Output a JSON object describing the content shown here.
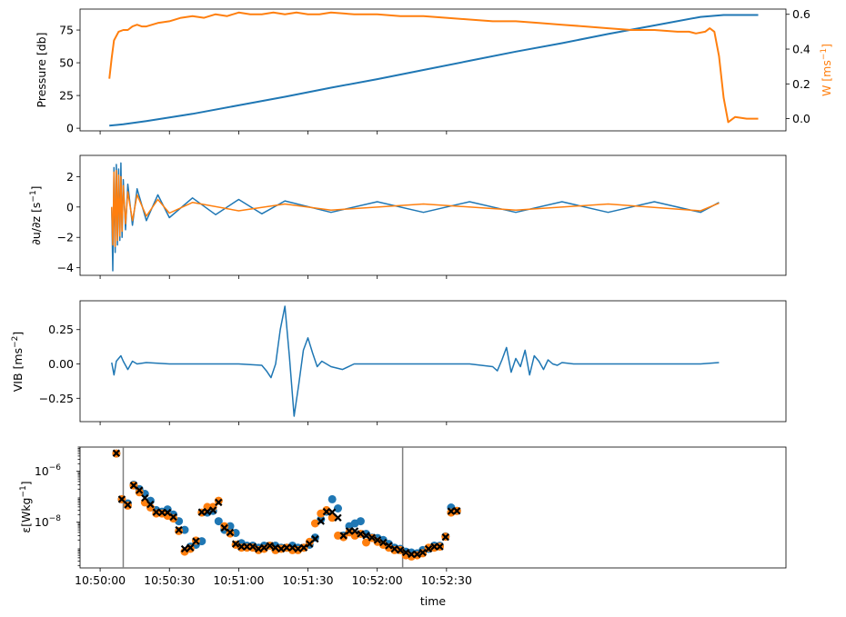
{
  "colors": {
    "blue": "#1f77b4",
    "orange": "#ff7f0e",
    "vline": "#808080",
    "marker_x": "#000000"
  },
  "chart_data": [
    {
      "type": "line",
      "id": "pressure",
      "xlabel": "",
      "ylabel": "Pressure [db]",
      "y2label": "W [ms",
      "y2label_sup": "−1",
      "y2label_end": "]",
      "xlim": [
        -8.7,
        297
      ],
      "ylim": [
        -2,
        91
      ],
      "y2lim": [
        -0.07,
        0.63
      ],
      "yticks": [
        0,
        25,
        50,
        75
      ],
      "y2ticks": [
        0.0,
        0.2,
        0.4,
        0.6
      ],
      "y2ticklabels": [
        "0.0",
        "0.2",
        "0.4",
        "0.6"
      ],
      "series": [
        {
          "axis": "left",
          "color": "#1f77b4",
          "x": [
            4,
            10,
            20,
            40,
            60,
            80,
            100,
            120,
            140,
            160,
            180,
            200,
            220,
            240,
            260,
            270,
            285
          ],
          "values": [
            2,
            3,
            5.5,
            11,
            17.5,
            24,
            31,
            37.5,
            44.5,
            51.5,
            58.5,
            65,
            72,
            78.5,
            85,
            86.5,
            86.5
          ]
        },
        {
          "axis": "right",
          "color": "#ff7f0e",
          "x": [
            4,
            5,
            6,
            8,
            10,
            12,
            14,
            16,
            18,
            20,
            25,
            30,
            35,
            40,
            45,
            50,
            55,
            60,
            65,
            70,
            75,
            80,
            85,
            90,
            95,
            100,
            110,
            120,
            130,
            140,
            150,
            160,
            170,
            180,
            190,
            200,
            210,
            220,
            230,
            240,
            250,
            255,
            258,
            262,
            264,
            266,
            268,
            270,
            272,
            275,
            280,
            285
          ],
          "values": [
            0.23,
            0.35,
            0.45,
            0.5,
            0.51,
            0.51,
            0.53,
            0.54,
            0.53,
            0.53,
            0.55,
            0.56,
            0.58,
            0.59,
            0.58,
            0.6,
            0.59,
            0.61,
            0.6,
            0.6,
            0.61,
            0.6,
            0.61,
            0.6,
            0.6,
            0.61,
            0.6,
            0.6,
            0.59,
            0.59,
            0.58,
            0.57,
            0.56,
            0.56,
            0.55,
            0.54,
            0.53,
            0.52,
            0.51,
            0.51,
            0.5,
            0.5,
            0.49,
            0.5,
            0.52,
            0.5,
            0.36,
            0.12,
            -0.02,
            0.01,
            0.0,
            0.0
          ]
        }
      ]
    },
    {
      "type": "line",
      "id": "shear",
      "xlabel": "",
      "ylabel": "∂u/∂z [s",
      "ylabel_sup": "−1",
      "ylabel_end": "]",
      "xlim": [
        -8.7,
        297
      ],
      "ylim": [
        -4.5,
        3.4
      ],
      "yticks": [
        -4,
        -2,
        0,
        2
      ],
      "yticklabels": [
        "−4",
        "−2",
        "0",
        "2"
      ],
      "series": [
        {
          "color": "#1f77b4",
          "x": [
            5,
            5.5,
            6,
            6.5,
            7,
            7.5,
            8,
            8.5,
            9,
            9.5,
            10,
            11,
            12,
            14,
            16,
            20,
            25,
            30,
            40,
            50,
            60,
            70,
            80,
            100,
            120,
            140,
            160,
            180,
            200,
            220,
            240,
            260,
            268
          ],
          "values": [
            0,
            -4.2,
            2.6,
            -3.0,
            2.8,
            -2.5,
            2.5,
            -2.2,
            2.9,
            -2.0,
            1.8,
            -1.5,
            1.5,
            -1.2,
            1.2,
            -0.9,
            0.8,
            -0.7,
            0.6,
            -0.5,
            0.5,
            -0.45,
            0.4,
            -0.35,
            0.35,
            -0.35,
            0.35,
            -0.35,
            0.35,
            -0.35,
            0.35,
            -0.35,
            0.3
          ]
        },
        {
          "color": "#ff7f0e",
          "x": [
            5,
            5.5,
            6,
            6.5,
            7,
            7.5,
            8,
            8.5,
            9,
            9.5,
            10,
            11,
            12,
            14,
            16,
            20,
            25,
            30,
            40,
            60,
            80,
            100,
            140,
            180,
            220,
            260,
            268
          ],
          "values": [
            0,
            -2.5,
            2.3,
            -2.6,
            2.4,
            -2.2,
            2.1,
            -1.9,
            2.0,
            -1.6,
            1.4,
            -1.1,
            1.0,
            -0.9,
            0.8,
            -0.6,
            0.5,
            -0.4,
            0.3,
            -0.25,
            0.2,
            -0.2,
            0.2,
            -0.2,
            0.2,
            -0.25,
            0.25
          ]
        }
      ]
    },
    {
      "type": "line",
      "id": "vib",
      "xlabel": "",
      "ylabel": "VIB [ms",
      "ylabel_sup": "−2",
      "ylabel_end": "]",
      "xlim": [
        -8.7,
        297
      ],
      "ylim": [
        -0.42,
        0.46
      ],
      "yticks": [
        -0.25,
        0.0,
        0.25
      ],
      "yticklabels": [
        "−0.25",
        "0.00",
        "0.25"
      ],
      "series": [
        {
          "color": "#1f77b4",
          "x": [
            5,
            6,
            7,
            8,
            9,
            10,
            12,
            14,
            16,
            20,
            30,
            40,
            50,
            60,
            70,
            72,
            74,
            76,
            78,
            80,
            82,
            84,
            86,
            88,
            90,
            92,
            94,
            96,
            100,
            105,
            110,
            120,
            140,
            160,
            170,
            172,
            174,
            176,
            178,
            180,
            182,
            184,
            186,
            188,
            190,
            192,
            194,
            196,
            198,
            200,
            205,
            210,
            220,
            240,
            260,
            268
          ],
          "values": [
            0.01,
            -0.08,
            0.02,
            0.04,
            0.06,
            0.02,
            -0.04,
            0.02,
            0.0,
            0.01,
            0.0,
            0.0,
            0.0,
            0.0,
            -0.01,
            -0.05,
            -0.1,
            0.0,
            0.25,
            0.42,
            0.05,
            -0.38,
            -0.15,
            0.1,
            0.19,
            0.08,
            -0.02,
            0.02,
            -0.02,
            -0.04,
            0.0,
            0.0,
            0.0,
            0.0,
            -0.02,
            -0.05,
            0.03,
            0.12,
            -0.06,
            0.04,
            -0.02,
            0.1,
            -0.08,
            0.06,
            0.02,
            -0.04,
            0.03,
            0.0,
            -0.01,
            0.01,
            0.0,
            0.0,
            0.0,
            0.0,
            0.0,
            0.01
          ]
        }
      ]
    },
    {
      "type": "scatter",
      "id": "epsilon",
      "xlabel": "time",
      "ylabel": "ε[Wkg",
      "ylabel_sup": "−1",
      "ylabel_end": "]",
      "scale": "log",
      "xlim": [
        -8.7,
        297
      ],
      "ylim": [
        1.6e-10,
        9e-06
      ],
      "yticks": [
        1e-08,
        1e-06
      ],
      "ytick_base": "10",
      "ytick_exps": [
        "−8",
        "−6"
      ],
      "xticks": [
        0,
        30,
        60,
        90,
        120,
        150
      ],
      "xticklabels": [
        "10:50:00",
        "10:50:30",
        "10:51:00",
        "10:51:30",
        "10:52:00",
        "10:52:30"
      ],
      "vlines": [
        10,
        131
      ],
      "times": [
        7,
        9.4,
        12,
        14.5,
        17,
        19.4,
        21.8,
        24.3,
        26.8,
        29.2,
        31.7,
        34.1,
        36.6,
        39.1,
        41.5,
        44,
        46.4,
        48.9,
        51.3,
        53.8,
        56.3,
        58.7,
        61.2,
        63.6,
        66.1,
        68.6,
        71,
        73.5,
        75.9,
        78.4,
        80.8,
        83.3,
        85.7,
        88.2,
        90.7,
        93.1,
        95.6,
        98,
        100.5,
        103,
        105.4,
        107.9,
        110.3,
        112.8,
        115.2,
        117.7,
        120.1,
        122.6,
        125,
        127.5,
        130,
        132.4,
        134.8,
        137.3,
        139.7,
        142.2,
        144.7,
        147.1,
        149.6,
        152,
        154.5,
        156.9
      ],
      "series": [
        {
          "name": "",
          "color": "#1f77b4",
          "marker": "o",
          "values": [
            5e-06,
            8e-08,
            5.5e-08,
            3e-07,
            2e-07,
            1.3e-07,
            7e-08,
            3e-08,
            2.6e-08,
            3.2e-08,
            2e-08,
            1.1e-08,
            5e-09,
            1.1e-09,
            1.3e-09,
            1.8e-09,
            2.4e-08,
            2.8e-08,
            1.1e-08,
            5e-09,
            7e-09,
            3.8e-09,
            1.5e-09,
            1.2e-09,
            1.2e-09,
            1e-09,
            1.2e-09,
            1.2e-09,
            1.2e-09,
            1e-09,
            1e-09,
            1.2e-09,
            1e-09,
            1e-09,
            1.3e-09,
            2.5e-09,
            1.3e-08,
            2.6e-08,
            8e-08,
            3.5e-08,
            3e-09,
            7e-09,
            9e-09,
            1.1e-08,
            3.5e-09,
            2.5e-09,
            2.4e-09,
            2e-09,
            1.4e-09,
            1e-09,
            9e-10,
            7e-10,
            6.5e-10,
            6e-10,
            8e-10,
            9e-10,
            1.2e-09,
            1.2e-09,
            2.8e-09,
            3.8e-08,
            2.8e-08,
            0
          ],
          "count": 61
        },
        {
          "name": "",
          "color": "#ff7f0e",
          "marker": "o",
          "values": [
            5e-06,
            8e-08,
            4.5e-08,
            2.8e-07,
            1.5e-07,
            6e-08,
            3.8e-08,
            2.2e-08,
            2.2e-08,
            1.8e-08,
            1.4e-08,
            4.5e-09,
            7e-10,
            9e-10,
            1.9e-09,
            2.4e-08,
            4e-08,
            4e-08,
            7e-08,
            7e-09,
            3.6e-09,
            1.3e-09,
            1e-09,
            1e-09,
            1e-09,
            8e-10,
            9e-10,
            1.2e-09,
            8e-10,
            9e-10,
            1e-09,
            8e-10,
            8e-10,
            1e-09,
            1.7e-09,
            9e-09,
            2.2e-08,
            3e-08,
            1.5e-08,
            3e-09,
            2.6e-09,
            4e-09,
            3e-09,
            3.5e-09,
            1.6e-09,
            2.4e-09,
            1.7e-09,
            1.3e-09,
            1e-09,
            8e-10,
            8e-10,
            5e-10,
            4.5e-10,
            5e-10,
            6e-10,
            1e-09,
            1e-09,
            1.1e-09,
            2.7e-09,
            2.4e-08,
            2.8e-08,
            0
          ],
          "count": 61
        },
        {
          "name": "",
          "color": "#000000",
          "marker": "x",
          "values": [
            5.2e-06,
            8e-08,
            4.8e-08,
            2.8e-07,
            1.8e-07,
            9e-08,
            5e-08,
            2.5e-08,
            2.4e-08,
            2.4e-08,
            1.6e-08,
            5e-09,
            9e-10,
            1e-09,
            1.8e-09,
            2.5e-08,
            2.6e-08,
            3e-08,
            6e-08,
            6e-09,
            4e-09,
            1.4e-09,
            1.1e-09,
            1.1e-09,
            1.1e-09,
            9e-10,
            1e-09,
            1.2e-09,
            1e-09,
            9e-10,
            1e-09,
            1e-09,
            9e-10,
            1e-09,
            1.4e-09,
            2.2e-09,
            1.1e-08,
            2.6e-08,
            2.5e-08,
            1.5e-08,
            3e-09,
            4.5e-09,
            4.5e-09,
            3.5e-09,
            3e-09,
            2.5e-09,
            2e-09,
            1.6e-09,
            1.2e-09,
            9e-10,
            8e-10,
            6.5e-10,
            5.5e-10,
            5.5e-10,
            6.5e-10,
            9e-10,
            1.1e-09,
            1.1e-09,
            2.6e-09,
            2.7e-08,
            2.8e-08,
            0
          ],
          "count": 61
        }
      ]
    }
  ]
}
